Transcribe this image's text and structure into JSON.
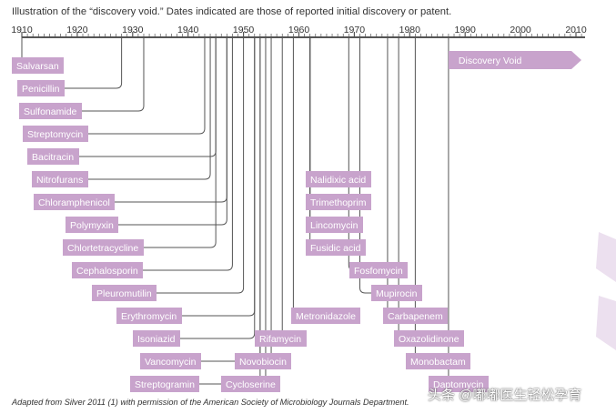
{
  "title": "Illustration of the “discovery void.” Dates indicated are those of reported initial discovery or patent.",
  "source_note": "Adapted from Silver 2011 (1) with permission of the American Society of Microbiology Journals Department.",
  "watermark": "头条 @嘟嘟医生轻松孕育",
  "colors": {
    "box": "#c8a3cc",
    "line": "#555555",
    "axis": "#555555",
    "void": "#c8a3cc",
    "deco": "#ece0ef"
  },
  "chart_data": {
    "type": "timeline",
    "x_range": [
      1910,
      2010
    ],
    "ticks": [
      1910,
      1920,
      1930,
      1940,
      1950,
      1960,
      1970,
      1980,
      1990,
      2000,
      2010
    ],
    "void_label": "Discovery Void",
    "void_start": 1987,
    "events": [
      {
        "name": "Salvarsan",
        "year": 1910
      },
      {
        "name": "Penicillin",
        "year": 1928
      },
      {
        "name": "Sulfonamide",
        "year": 1932
      },
      {
        "name": "Streptomycin",
        "year": 1943
      },
      {
        "name": "Bacitracin",
        "year": 1945
      },
      {
        "name": "Nitrofurans",
        "year": 1944
      },
      {
        "name": "Chloramphenicol",
        "year": 1947
      },
      {
        "name": "Polymyxin",
        "year": 1947
      },
      {
        "name": "Chlortetracycline",
        "year": 1945
      },
      {
        "name": "Cephalosporin",
        "year": 1948
      },
      {
        "name": "Pleuromutilin",
        "year": 1950
      },
      {
        "name": "Erythromycin",
        "year": 1952
      },
      {
        "name": "Isoniazid",
        "year": 1952
      },
      {
        "name": "Vancomycin",
        "year": 1953
      },
      {
        "name": "Streptogramin",
        "year": 1953
      },
      {
        "name": "Cycloserine",
        "year": 1954
      },
      {
        "name": "Novobiocin",
        "year": 1955
      },
      {
        "name": "Rifamycin",
        "year": 1957
      },
      {
        "name": "Metronidazole",
        "year": 1959
      },
      {
        "name": "Nalidixic acid",
        "year": 1962
      },
      {
        "name": "Trimethoprim",
        "year": 1962
      },
      {
        "name": "Lincomycin",
        "year": 1962
      },
      {
        "name": "Fusidic acid",
        "year": 1962
      },
      {
        "name": "Fosfomycin",
        "year": 1969
      },
      {
        "name": "Mupirocin",
        "year": 1971
      },
      {
        "name": "Carbapenem",
        "year": 1976
      },
      {
        "name": "Oxazolidinone",
        "year": 1978
      },
      {
        "name": "Monobactam",
        "year": 1981
      },
      {
        "name": "Daptomycin",
        "year": 1987
      }
    ]
  }
}
